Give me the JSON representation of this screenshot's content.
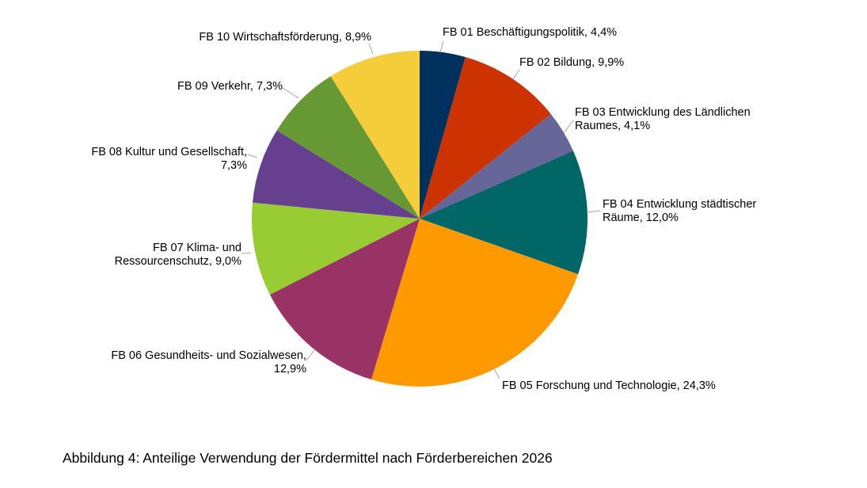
{
  "chart_data": {
    "type": "pie",
    "title": "",
    "caption": "Abbildung 4: Anteilige Verwendung der Fördermittel nach Förderbereichen 2026",
    "unit": "%",
    "start": "top, clockwise",
    "slices": [
      {
        "name": "FB 01 Beschäftigungspolitik",
        "value": 4.4,
        "color": "#00305e",
        "label_lines": [
          "FB 01 Beschäftigungspolitik, 4,4%"
        ]
      },
      {
        "name": "FB 02 Bildung",
        "value": 9.9,
        "color": "#cc3300",
        "label_lines": [
          "FB 02 Bildung, 9,9%"
        ]
      },
      {
        "name": "FB 03 Entwicklung des Ländlichen Raumes",
        "value": 4.1,
        "color": "#666699",
        "label_lines": [
          "FB 03 Entwicklung des Ländlichen",
          "Raumes, 4,1%"
        ]
      },
      {
        "name": "FB 04 Entwicklung städtischer Räume",
        "value": 12.0,
        "color": "#006666",
        "label_lines": [
          "FB 04 Entwicklung städtischer",
          "Räume, 12,0%"
        ]
      },
      {
        "name": "FB 05 Forschung und Technologie",
        "value": 24.3,
        "color": "#ff9900",
        "label_lines": [
          "FB 05 Forschung und Technologie, 24,3%"
        ]
      },
      {
        "name": "FB 06 Gesundheits- und Sozialwesen",
        "value": 12.9,
        "color": "#993366",
        "label_lines": [
          "FB 06 Gesundheits- und Sozialwesen,",
          "12,9%"
        ]
      },
      {
        "name": "FB 07 Klima- und Ressourcenschutz",
        "value": 9.0,
        "color": "#99cc33",
        "label_lines": [
          "FB 07 Klima- und",
          "Ressourcenschutz, 9,0%"
        ]
      },
      {
        "name": "FB 08 Kultur und Gesellschaft",
        "value": 7.3,
        "color": "#663f8f",
        "label_lines": [
          "FB 08 Kultur und Gesellschaft,",
          "7,3%"
        ]
      },
      {
        "name": "FB 09 Verkehr",
        "value": 7.3,
        "color": "#669933",
        "label_lines": [
          "FB 09 Verkehr, 7,3%"
        ]
      },
      {
        "name": "FB 10 Wirtschaftsförderung",
        "value": 8.9,
        "color": "#f5cc3a",
        "label_lines": [
          "FB 10 Wirtschaftsförderung, 8,9%"
        ]
      }
    ]
  }
}
